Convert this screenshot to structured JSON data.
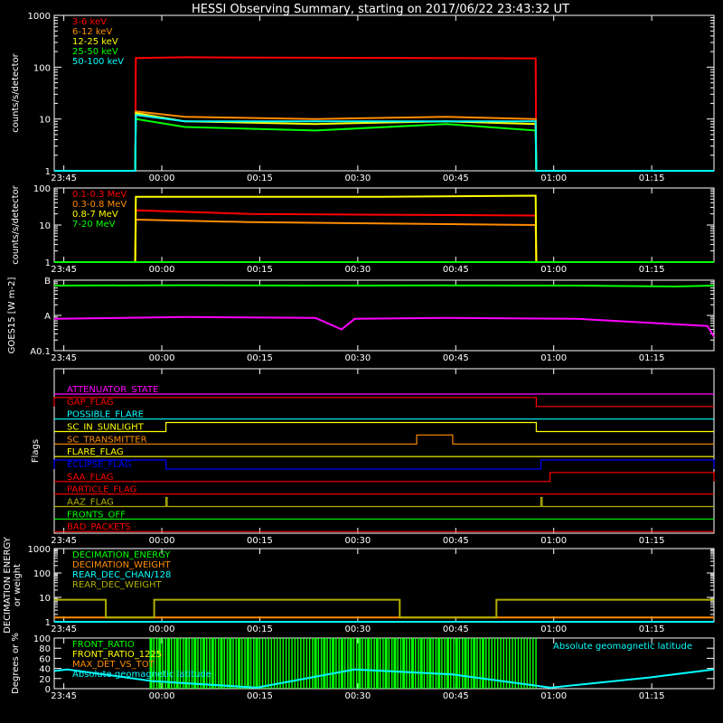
{
  "title": "HESSI Observing Summary, starting on 2017/06/22 23:43:32 UT",
  "x_ticks": [
    "23:45",
    "00:00",
    "00:15",
    "00:30",
    "00:45",
    "01:00",
    "01:15"
  ],
  "x_tick_minutes": [
    1.47,
    16.47,
    31.47,
    46.47,
    61.47,
    76.47,
    91.47
  ],
  "x_range_minutes": [
    0,
    101
  ],
  "colors": {
    "red": "#ff0000",
    "orange": "#ff8c00",
    "yellow": "#ffff00",
    "green": "#00ff00",
    "cyan": "#00ffff",
    "magenta": "#ff00ff",
    "blue": "#0000ff",
    "olive": "#b0b000",
    "white": "#ffffff"
  },
  "chart_data": [
    {
      "type": "line",
      "ylabel": "counts/s/detector",
      "y_scale": "log",
      "ylim": [
        1,
        1000
      ],
      "y_ticks": [
        "1",
        "10",
        "100",
        "1000"
      ],
      "y_tick_values": [
        1,
        10,
        100,
        1000
      ],
      "legend_position": "top-left",
      "series": [
        {
          "name": "3-6 keV",
          "color": "red",
          "x": [
            0,
            12.4,
            12.5,
            20,
            40,
            60,
            73.7,
            73.8,
            101
          ],
          "values": [
            1,
            1,
            150,
            155,
            152,
            150,
            148,
            1,
            1
          ]
        },
        {
          "name": "6-12 keV",
          "color": "orange",
          "x": [
            0,
            12.4,
            12.5,
            20,
            40,
            60,
            73.7,
            73.8,
            101
          ],
          "values": [
            1,
            1,
            14,
            11,
            10,
            11,
            10,
            1,
            1
          ]
        },
        {
          "name": "12-25 keV",
          "color": "yellow",
          "x": [
            0,
            12.4,
            12.5,
            20,
            40,
            60,
            73.7,
            73.8,
            101
          ],
          "values": [
            1,
            1,
            13,
            9,
            8,
            9,
            8,
            1,
            1
          ]
        },
        {
          "name": "25-50 keV",
          "color": "green",
          "x": [
            0,
            12.4,
            12.5,
            20,
            40,
            60,
            73.7,
            73.8,
            101
          ],
          "values": [
            1,
            1,
            10,
            7,
            6,
            8,
            6,
            1,
            1
          ]
        },
        {
          "name": "50-100 keV",
          "color": "cyan",
          "x": [
            0,
            12.4,
            12.5,
            20,
            40,
            60,
            73.7,
            73.8,
            101
          ],
          "values": [
            1,
            1,
            12,
            9,
            9,
            9,
            9,
            1,
            1
          ]
        }
      ]
    },
    {
      "type": "line",
      "ylabel": "counts/s/detector",
      "y_scale": "log",
      "ylim": [
        1,
        100
      ],
      "y_ticks": [
        "1",
        "10",
        "100"
      ],
      "y_tick_values": [
        1,
        10,
        100
      ],
      "legend_position": "top-left",
      "series": [
        {
          "name": "0.1-0.3 MeV",
          "color": "red",
          "x": [
            0,
            12.4,
            12.5,
            30,
            50,
            73.7,
            73.8,
            101
          ],
          "values": [
            1,
            1,
            25,
            20,
            19,
            18,
            1,
            1
          ]
        },
        {
          "name": "0.3-0.8 MeV",
          "color": "orange",
          "x": [
            0,
            12.4,
            12.5,
            30,
            50,
            73.7,
            73.8,
            101
          ],
          "values": [
            1,
            1,
            14,
            12,
            11,
            10,
            1,
            1
          ]
        },
        {
          "name": "0.8-7 MeV",
          "color": "yellow",
          "x": [
            0,
            12.4,
            12.5,
            30,
            50,
            73.7,
            73.8,
            101
          ],
          "values": [
            1,
            1,
            58,
            58,
            58,
            62,
            1,
            1
          ]
        },
        {
          "name": "7-20 MeV",
          "color": "green",
          "x": [
            0,
            101
          ],
          "values": [
            1,
            1
          ]
        }
      ]
    },
    {
      "type": "line",
      "ylabel": "GOES15 [W m-2]",
      "y_scale": "log",
      "ylim": [
        1e-08,
        1e-06
      ],
      "y_ticks": [
        "A0.1",
        "A",
        "B"
      ],
      "y_tick_values": [
        1e-08,
        1e-07,
        1e-06
      ],
      "series": [
        {
          "color": "green",
          "x": [
            0,
            20,
            40,
            60,
            80,
            95,
            101
          ],
          "values": [
            7e-07,
            7.2e-07,
            7e-07,
            7.1e-07,
            7e-07,
            6.6e-07,
            7e-07
          ]
        },
        {
          "color": "magenta",
          "x": [
            0,
            20,
            40,
            44,
            46,
            60,
            80,
            100,
            101
          ],
          "values": [
            8e-08,
            9e-08,
            8.5e-08,
            4e-08,
            8e-08,
            8.5e-08,
            8e-08,
            5e-08,
            2.5e-08
          ]
        }
      ]
    },
    {
      "type": "line",
      "ylabel": "Flags",
      "flags": [
        {
          "name": "ATTENUATOR_STATE",
          "color": "magenta",
          "on": []
        },
        {
          "name": "GAP_FLAG",
          "color": "red",
          "on": [
            [
              0,
              73.8
            ]
          ]
        },
        {
          "name": "POSSIBLE_FLARE",
          "color": "cyan",
          "on": []
        },
        {
          "name": "SC_IN_SUNLIGHT",
          "color": "yellow",
          "on": [
            [
              17.1,
              73.8
            ]
          ]
        },
        {
          "name": "SC_TRANSMITTER",
          "color": "orange",
          "on": [
            [
              55.5,
              61
            ]
          ]
        },
        {
          "name": "FLARE_FLAG",
          "color": "yellow",
          "on": []
        },
        {
          "name": "ECLIPSE_FLAG",
          "color": "blue",
          "on": [
            [
              0,
              17.1
            ],
            [
              74.5,
              101
            ]
          ]
        },
        {
          "name": "SAA_FLAG",
          "color": "red",
          "on": [
            [
              75.9,
              101
            ]
          ]
        },
        {
          "name": "PARTICLE_FLAG",
          "color": "red",
          "on": []
        },
        {
          "name": "AAZ_FLAG",
          "color": "olive",
          "on": [
            [
              17.1,
              17.3
            ],
            [
              74.5,
              74.7
            ]
          ]
        },
        {
          "name": "FRONTS_OFF",
          "color": "green",
          "on": []
        },
        {
          "name": "BAD_PACKETS",
          "color": "red",
          "on": []
        }
      ]
    },
    {
      "type": "line",
      "ylabel": "DECIMATION ENERGY or weight",
      "y_scale": "log",
      "ylim": [
        1,
        1000
      ],
      "y_ticks": [
        "1",
        "10",
        "100",
        "1000"
      ],
      "y_tick_values": [
        1,
        10,
        100,
        1000
      ],
      "legend_position": "top-left",
      "series": [
        {
          "name": "DECIMATION_ENERGY",
          "color": "green",
          "x": [
            0,
            101
          ],
          "values": [
            1,
            1
          ]
        },
        {
          "name": "DECIMATION_WEIGHT",
          "color": "orange",
          "x": [
            0,
            101
          ],
          "values": [
            1.5,
            1.5
          ]
        },
        {
          "name": "REAR_DEC_CHAN/128",
          "color": "cyan",
          "x": [
            0,
            101
          ],
          "values": [
            1,
            1
          ]
        },
        {
          "name": "REAR_DEC_WEIGHT",
          "color": "olive",
          "x": [
            0,
            7.9,
            7.9,
            15.3,
            15.3,
            52.9,
            52.9,
            67.7,
            67.7,
            101
          ],
          "values": [
            8,
            8,
            1.5,
            1.5,
            8,
            8,
            1.5,
            1.5,
            8,
            8
          ]
        }
      ]
    },
    {
      "type": "line",
      "ylabel": "Degrees or %",
      "ylim": [
        0,
        100
      ],
      "y_ticks": [
        "0",
        "20",
        "40",
        "60",
        "80",
        "100"
      ],
      "y_tick_values": [
        0,
        20,
        40,
        60,
        80,
        100
      ],
      "legend_position": "top-left",
      "annotations": [
        "Absolute geomagnetic latitude"
      ],
      "bar_region": [
        14.8,
        73.8
      ],
      "series": [
        {
          "name": "FRONT_RATIO",
          "color": "green",
          "x": [
            14.8,
            73.8
          ],
          "values": [
            100,
            100
          ]
        },
        {
          "name": "FRONT_RATIO_1225",
          "color": "yellow",
          "x": [],
          "values": []
        },
        {
          "name": "MAX_DET_VS_TOT",
          "color": "orange",
          "x": [],
          "values": []
        },
        {
          "name": "Absolute geomagnetic latitude",
          "color": "cyan",
          "x": [
            0,
            2,
            15,
            31,
            46,
            61,
            76,
            91,
            101
          ],
          "values": [
            35,
            38,
            15,
            2,
            38,
            28,
            2,
            22,
            38
          ]
        }
      ]
    }
  ]
}
